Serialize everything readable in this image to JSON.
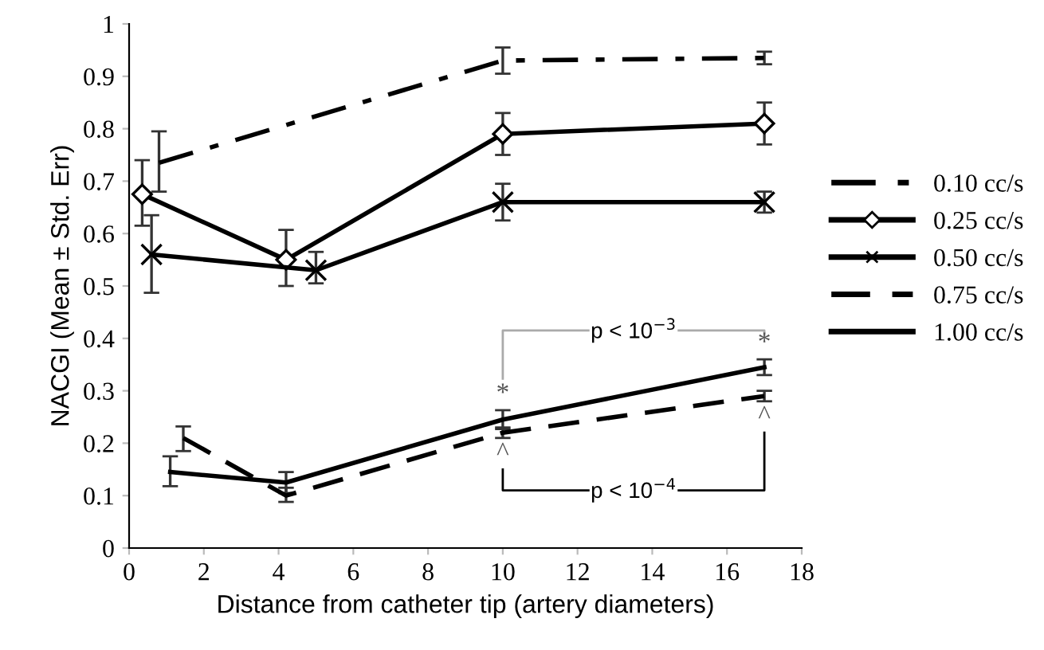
{
  "chart_data": {
    "type": "line",
    "xlabel": "Distance from catheter tip (artery diameters)",
    "ylabel": "NACGI (Mean ± Std. Err)",
    "xlim": [
      0,
      18
    ],
    "xticks": [
      0,
      2,
      4,
      6,
      8,
      10,
      12,
      14,
      16,
      18
    ],
    "ylim": [
      0,
      1
    ],
    "yticks": [
      0,
      0.1,
      0.2,
      0.3,
      0.4,
      0.5,
      0.6,
      0.7,
      0.8,
      0.9,
      1
    ],
    "grid": false,
    "legend": "right",
    "series": [
      {
        "name": "0.10 cc/s",
        "color": "#000000",
        "line_style": "dashdot",
        "marker": "none",
        "x": [
          0.8,
          10,
          17
        ],
        "values": [
          0.735,
          0.93,
          0.935
        ],
        "errors": [
          [
            0.68,
            0.795
          ],
          0.025,
          0.012
        ]
      },
      {
        "name": "0.25 cc/s",
        "color": "#000000",
        "line_style": "solid",
        "marker": "diamond",
        "x": [
          0.35,
          4.2,
          10,
          17
        ],
        "values": [
          0.675,
          0.55,
          0.79,
          0.81
        ],
        "errors": [
          [
            0.615,
            0.74
          ],
          [
            0.5,
            0.607
          ],
          0.04,
          0.04
        ]
      },
      {
        "name": "0.50 cc/s",
        "color": "#000000",
        "line_style": "solid",
        "marker": "cross",
        "x": [
          0.6,
          5,
          10,
          17
        ],
        "values": [
          0.56,
          0.53,
          0.66,
          0.66
        ],
        "errors": [
          [
            0.487,
            0.635
          ],
          [
            0.505,
            0.565
          ],
          [
            0.625,
            0.695
          ],
          0.02
        ]
      },
      {
        "name": "0.75 cc/s",
        "color": "#000000",
        "line_style": "dashed",
        "marker": "none",
        "x": [
          1.45,
          4.2,
          10,
          17
        ],
        "values": [
          0.21,
          0.1,
          0.22,
          0.29
        ],
        "errors": [
          [
            0.185,
            0.232
          ],
          [
            0.088,
            0.115
          ],
          0.01,
          0.01
        ]
      },
      {
        "name": "1.00 cc/s",
        "color": "#000000",
        "line_style": "solid",
        "marker": "none",
        "x": [
          1.1,
          4.2,
          10,
          17
        ],
        "values": [
          0.145,
          0.125,
          0.245,
          0.345
        ],
        "errors": [
          [
            0.118,
            0.175
          ],
          0.02,
          0.018,
          0.015
        ]
      }
    ],
    "annotations": [
      "*",
      "*",
      "p < 10$^{−3}$",
      "^",
      "^",
      "p < 10$^{−4}$"
    ]
  }
}
